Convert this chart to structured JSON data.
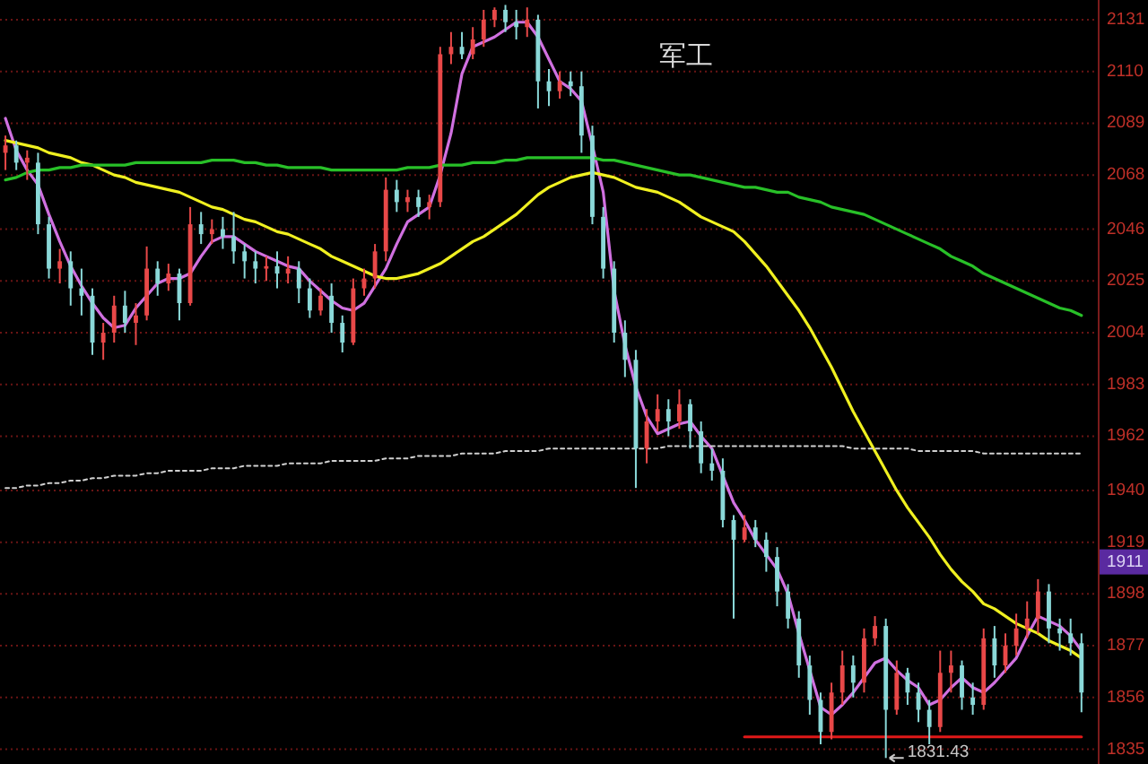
{
  "chart_data": {
    "type": "candlestick",
    "title": "军工",
    "categories": [
      null,
      null,
      null,
      null,
      null,
      null,
      null,
      null,
      null,
      null,
      null,
      null,
      null,
      null,
      null,
      null,
      null,
      null,
      null,
      null,
      null,
      null,
      null,
      null,
      null,
      null,
      null,
      null,
      null,
      null,
      null,
      null,
      null,
      null,
      null,
      null,
      null,
      null,
      null,
      null,
      null,
      null,
      null,
      null,
      null,
      null,
      null,
      null,
      null,
      null,
      null,
      null,
      null,
      null,
      null,
      null,
      null,
      null,
      null,
      null,
      null,
      null,
      null,
      null,
      null,
      null,
      null,
      null,
      null,
      null,
      null,
      null,
      null,
      null,
      null,
      null,
      null,
      null,
      null,
      null,
      null,
      null,
      null,
      null,
      null,
      null,
      null,
      null,
      null,
      null,
      null,
      null,
      null,
      null,
      null,
      null,
      null,
      null,
      null,
      null
    ],
    "ohlc": [
      [
        2077,
        2084,
        2070,
        2080
      ],
      [
        2080,
        2082,
        2070,
        2073
      ],
      [
        2073,
        2078,
        2066,
        2075
      ],
      [
        2073,
        2077,
        2044,
        2048
      ],
      [
        2048,
        2051,
        2026,
        2030
      ],
      [
        2030,
        2038,
        2024,
        2033
      ],
      [
        2033,
        2037,
        2015,
        2022
      ],
      [
        2022,
        2030,
        2011,
        2019
      ],
      [
        2019,
        2022,
        1995,
        2000
      ],
      [
        2000,
        2008,
        1993,
        2004
      ],
      [
        2004,
        2019,
        2000,
        2015
      ],
      [
        2015,
        2021,
        2004,
        2008
      ],
      [
        2008,
        2016,
        1999,
        2011
      ],
      [
        2011,
        2039,
        2009,
        2030
      ],
      [
        2030,
        2033,
        2019,
        2024
      ],
      [
        2024,
        2032,
        2021,
        2028
      ],
      [
        2028,
        2030,
        2009,
        2016
      ],
      [
        2016,
        2055,
        2015,
        2048
      ],
      [
        2048,
        2053,
        2040,
        2044
      ],
      [
        2044,
        2050,
        2040,
        2046
      ],
      [
        2046,
        2051,
        2038,
        2043
      ],
      [
        2043,
        2053,
        2032,
        2037
      ],
      [
        2037,
        2040,
        2026,
        2033
      ],
      [
        2033,
        2037,
        2024,
        2030
      ],
      [
        2030,
        2035,
        2025,
        2031
      ],
      [
        2031,
        2037,
        2022,
        2028
      ],
      [
        2028,
        2035,
        2024,
        2030
      ],
      [
        2030,
        2033,
        2016,
        2022
      ],
      [
        2022,
        2026,
        2010,
        2013
      ],
      [
        2013,
        2022,
        2011,
        2019
      ],
      [
        2019,
        2024,
        2004,
        2008
      ],
      [
        2008,
        2011,
        1996,
        2000
      ],
      [
        2000,
        2026,
        1999,
        2022
      ],
      [
        2022,
        2030,
        2019,
        2026
      ],
      [
        2026,
        2040,
        2022,
        2037
      ],
      [
        2037,
        2067,
        2033,
        2062
      ],
      [
        2062,
        2066,
        2053,
        2057
      ],
      [
        2057,
        2062,
        2053,
        2059
      ],
      [
        2059,
        2062,
        2051,
        2055
      ],
      [
        2055,
        2060,
        2050,
        2057
      ],
      [
        2057,
        2120,
        2055,
        2117
      ],
      [
        2117,
        2126,
        2113,
        2120
      ],
      [
        2120,
        2126,
        2115,
        2117
      ],
      [
        2117,
        2128,
        2115,
        2123
      ],
      [
        2123,
        2135,
        2120,
        2131
      ],
      [
        2131,
        2136,
        2128,
        2135
      ],
      [
        2135,
        2137,
        2126,
        2130
      ],
      [
        2130,
        2135,
        2123,
        2128
      ],
      [
        2128,
        2136,
        2124,
        2131
      ],
      [
        2131,
        2133,
        2095,
        2106
      ],
      [
        2106,
        2111,
        2096,
        2102
      ],
      [
        2102,
        2110,
        2099,
        2106
      ],
      [
        2106,
        2110,
        2100,
        2104
      ],
      [
        2104,
        2110,
        2077,
        2084
      ],
      [
        2084,
        2088,
        2048,
        2051
      ],
      [
        2051,
        2055,
        2026,
        2030
      ],
      [
        2030,
        2033,
        2000,
        2004
      ],
      [
        2004,
        2009,
        1986,
        1993
      ],
      [
        1993,
        1997,
        1941,
        1957
      ],
      [
        1957,
        1973,
        1951,
        1968
      ],
      [
        1968,
        1979,
        1964,
        1973
      ],
      [
        1973,
        1977,
        1962,
        1968
      ],
      [
        1968,
        1981,
        1965,
        1975
      ],
      [
        1975,
        1977,
        1957,
        1964
      ],
      [
        1964,
        1968,
        1947,
        1951
      ],
      [
        1951,
        1957,
        1944,
        1948
      ],
      [
        1948,
        1953,
        1925,
        1928
      ],
      [
        1928,
        1930,
        1888,
        1920
      ],
      [
        1920,
        1930,
        1919,
        1925
      ],
      [
        1925,
        1928,
        1917,
        1920
      ],
      [
        1920,
        1923,
        1907,
        1913
      ],
      [
        1913,
        1917,
        1893,
        1899
      ],
      [
        1899,
        1902,
        1884,
        1888
      ],
      [
        1888,
        1891,
        1864,
        1869
      ],
      [
        1869,
        1873,
        1849,
        1855
      ],
      [
        1855,
        1858,
        1837,
        1842
      ],
      [
        1842,
        1862,
        1839,
        1858
      ],
      [
        1858,
        1875,
        1853,
        1869
      ],
      [
        1869,
        1873,
        1856,
        1862
      ],
      [
        1862,
        1884,
        1858,
        1880
      ],
      [
        1880,
        1889,
        1877,
        1885
      ],
      [
        1885,
        1888,
        1831.43,
        1851
      ],
      [
        1851,
        1871,
        1849,
        1866
      ],
      [
        1866,
        1868,
        1853,
        1858
      ],
      [
        1858,
        1862,
        1846,
        1851
      ],
      [
        1851,
        1855,
        1837,
        1844
      ],
      [
        1844,
        1875,
        1842,
        1866
      ],
      [
        1866,
        1875,
        1858,
        1869
      ],
      [
        1869,
        1871,
        1851,
        1856
      ],
      [
        1856,
        1862,
        1849,
        1853
      ],
      [
        1853,
        1884,
        1851,
        1880
      ],
      [
        1880,
        1885,
        1864,
        1869
      ],
      [
        1869,
        1882,
        1866,
        1877
      ],
      [
        1877,
        1890,
        1873,
        1884
      ],
      [
        1884,
        1895,
        1880,
        1888
      ],
      [
        1888,
        1904,
        1882,
        1899
      ],
      [
        1899,
        1902,
        1878,
        1884
      ],
      [
        1884,
        1888,
        1875,
        1882
      ],
      [
        1882,
        1888,
        1873,
        1878
      ],
      [
        1878,
        1882,
        1850,
        1858
      ]
    ],
    "series": [
      {
        "type": "line",
        "color": "#d070e0",
        "values": [
          2091,
          2078,
          2070,
          2064,
          2052,
          2041,
          2031,
          2023,
          2016,
          2010,
          2006,
          2007,
          2014,
          2019,
          2024,
          2026,
          2026,
          2028,
          2035,
          2041,
          2043,
          2043,
          2040,
          2037,
          2035,
          2033,
          2031,
          2030,
          2025,
          2021,
          2017,
          2014,
          2013,
          2016,
          2023,
          2030,
          2040,
          2049,
          2052,
          2055,
          2068,
          2085,
          2109,
          2120,
          2122,
          2124,
          2127,
          2130,
          2130,
          2124,
          2115,
          2106,
          2103,
          2098,
          2080,
          2061,
          2021,
          1999,
          1982,
          1970,
          1963,
          1965,
          1967,
          1968,
          1962,
          1957,
          1946,
          1935,
          1928,
          1920,
          1914,
          1908,
          1898,
          1882,
          1867,
          1852,
          1849,
          1853,
          1858,
          1864,
          1870,
          1872,
          1867,
          1863,
          1860,
          1853,
          1855,
          1860,
          1864,
          1860,
          1858,
          1862,
          1867,
          1872,
          1881,
          1889,
          1887,
          1885,
          1881,
          1875
        ]
      },
      {
        "type": "line",
        "color": "#f0f020",
        "values": [
          2082,
          2081,
          2080,
          2079,
          2077,
          2076,
          2075,
          2073,
          2072,
          2070,
          2068,
          2067,
          2065,
          2064,
          2063,
          2062,
          2061,
          2059,
          2057,
          2055,
          2054,
          2052,
          2050,
          2049,
          2047,
          2045,
          2044,
          2042,
          2040,
          2038,
          2035,
          2033,
          2031,
          2029,
          2027,
          2026,
          2026,
          2027,
          2028,
          2030,
          2032,
          2035,
          2038,
          2041,
          2043,
          2046,
          2049,
          2052,
          2056,
          2060,
          2063,
          2065,
          2067,
          2068,
          2069,
          2068,
          2067,
          2065,
          2063,
          2062,
          2061,
          2059,
          2057,
          2054,
          2051,
          2049,
          2047,
          2045,
          2041,
          2036,
          2031,
          2025,
          2019,
          2013,
          2006,
          1998,
          1990,
          1981,
          1972,
          1964,
          1956,
          1948,
          1940,
          1933,
          1927,
          1921,
          1914,
          1908,
          1903,
          1899,
          1894,
          1892,
          1889,
          1886,
          1884,
          1882,
          1879,
          1877,
          1875,
          1872
        ]
      },
      {
        "type": "line",
        "color": "#28c028",
        "values": [
          2066,
          2067,
          2069,
          2070,
          2070,
          2071,
          2071,
          2072,
          2072,
          2072,
          2072,
          2072,
          2073,
          2073,
          2073,
          2073,
          2073,
          2073,
          2073,
          2074,
          2074,
          2074,
          2073,
          2073,
          2072,
          2072,
          2071,
          2071,
          2071,
          2071,
          2070,
          2070,
          2070,
          2070,
          2070,
          2070,
          2070,
          2071,
          2071,
          2071,
          2072,
          2072,
          2072,
          2073,
          2073,
          2073,
          2074,
          2074,
          2075,
          2075,
          2075,
          2075,
          2075,
          2075,
          2075,
          2074,
          2074,
          2073,
          2072,
          2071,
          2070,
          2069,
          2068,
          2068,
          2067,
          2066,
          2065,
          2064,
          2063,
          2063,
          2062,
          2061,
          2061,
          2059,
          2058,
          2057,
          2055,
          2054,
          2053,
          2052,
          2050,
          2048,
          2046,
          2044,
          2042,
          2040,
          2038,
          2035,
          2033,
          2031,
          2028,
          2026,
          2024,
          2022,
          2020,
          2018,
          2016,
          2014,
          2013,
          2011
        ]
      },
      {
        "type": "line",
        "color": "#d0d0d0",
        "line_style": "dotted",
        "values": [
          1941,
          1941,
          1942,
          1942,
          1943,
          1943,
          1944,
          1944,
          1945,
          1945,
          1946,
          1946,
          1946,
          1947,
          1947,
          1948,
          1948,
          1948,
          1948,
          1949,
          1949,
          1949,
          1950,
          1950,
          1950,
          1950,
          1951,
          1951,
          1951,
          1951,
          1952,
          1952,
          1952,
          1952,
          1952,
          1953,
          1953,
          1953,
          1954,
          1954,
          1954,
          1954,
          1955,
          1955,
          1955,
          1955,
          1956,
          1956,
          1956,
          1956,
          1957,
          1957,
          1957,
          1957,
          1957,
          1957,
          1957,
          1957,
          1957,
          1957,
          1957,
          1958,
          1958,
          1958,
          1958,
          1958,
          1958,
          1958,
          1958,
          1958,
          1958,
          1958,
          1958,
          1958,
          1958,
          1958,
          1958,
          1958,
          1957,
          1957,
          1957,
          1957,
          1957,
          1957,
          1956,
          1956,
          1956,
          1956,
          1956,
          1956,
          1955,
          1955,
          1955,
          1955,
          1955,
          1955,
          1955,
          1955,
          1955,
          1955
        ]
      },
      {
        "type": "line",
        "color": "#e01818",
        "values": [
          null,
          null,
          null,
          null,
          null,
          null,
          null,
          null,
          null,
          null,
          null,
          null,
          null,
          null,
          null,
          null,
          null,
          null,
          null,
          null,
          null,
          null,
          null,
          null,
          null,
          null,
          null,
          null,
          null,
          null,
          null,
          null,
          null,
          null,
          null,
          null,
          null,
          null,
          null,
          null,
          null,
          null,
          null,
          null,
          null,
          null,
          null,
          null,
          null,
          null,
          null,
          null,
          null,
          null,
          null,
          null,
          null,
          null,
          null,
          null,
          null,
          null,
          null,
          null,
          null,
          null,
          null,
          null,
          1840,
          1840,
          1840,
          1840,
          1840,
          1840,
          1840,
          1840,
          1840,
          1840,
          1840,
          1840,
          1840,
          1840,
          1840,
          1840,
          1840,
          1840,
          1840,
          1840,
          1840,
          1840,
          1840,
          1840,
          1840,
          1840,
          1840,
          1840,
          1840,
          1840,
          1840,
          1840
        ]
      }
    ],
    "ylim": [
      1829,
      2139
    ],
    "yticks": [
      1835,
      1856,
      1877,
      1898,
      1919,
      1940,
      1962,
      1983,
      2004,
      2025,
      2046,
      2068,
      2089,
      2110,
      2131
    ],
    "grid": "y",
    "tick_labels": "y",
    "annotations": [
      "1831.43",
      {
        "text": "1911",
        "y": 1911
      }
    ]
  }
}
